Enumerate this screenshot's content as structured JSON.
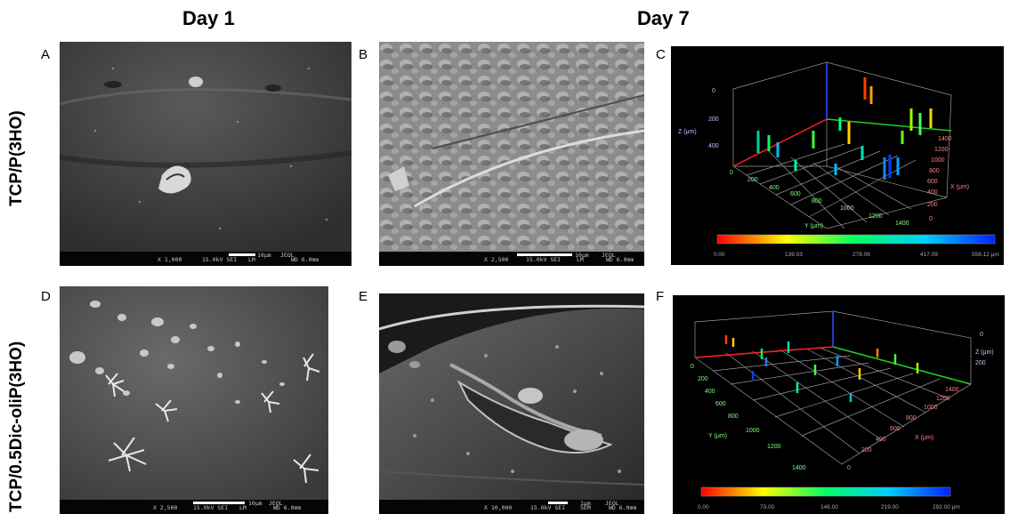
{
  "columns": {
    "day1": "Day 1",
    "day7": "Day 7"
  },
  "rows": {
    "top": "TCP/P(3HO)",
    "bottom": "TCP/0.5Dic-oliP(3HO)"
  },
  "panels": {
    "A": {
      "label": "A",
      "mag": "X 1,000",
      "kv": "15.0kV SEI",
      "scale": "10μm",
      "brand": "JEOL",
      "id": "LM",
      "wd": "WD 6.0mm"
    },
    "B": {
      "label": "B",
      "mag": "X 2,500",
      "kv": "15.0kV SEI",
      "scale": "10μm",
      "brand": "JEOL",
      "id": "LM",
      "wd": "WD 6.0mm"
    },
    "C": {
      "label": "C",
      "z_axis": "Z (μm)",
      "x_axis": "X (μm)",
      "y_axis": "Y (μm)",
      "z_ticks": [
        "0",
        "200",
        "400"
      ],
      "y_ticks": [
        "0",
        "200",
        "400",
        "600",
        "800",
        "1000",
        "1200",
        "1400"
      ],
      "x_ticks": [
        "1400",
        "1200",
        "1000",
        "800",
        "600",
        "400",
        "200",
        "0"
      ],
      "colorbar": [
        "0.00",
        "139.03",
        "278.06",
        "417.09",
        "556.12 μm"
      ]
    },
    "D": {
      "label": "D",
      "mag": "X 2,500",
      "kv": "15.0kV SEI",
      "scale": "10μm",
      "brand": "JEOL",
      "id": "LM",
      "wd": "WD 6.0mm"
    },
    "E": {
      "label": "E",
      "mag": "X 10,000",
      "kv": "15.0kV SEI",
      "scale": "1μm",
      "brand": "JEOL",
      "id": "SEM",
      "wd": "WD 6.0mm"
    },
    "F": {
      "label": "F",
      "z_axis": "Z (μm)",
      "x_axis": "X (μm)",
      "y_axis": "Y (μm)",
      "z_ticks": [
        "0",
        "200"
      ],
      "y_ticks": [
        "0",
        "200",
        "400",
        "600",
        "800",
        "1000",
        "1200",
        "1400"
      ],
      "x_ticks": [
        "1400",
        "1200",
        "1000",
        "800",
        "600",
        "400",
        "200",
        "0"
      ],
      "colorbar": [
        "0.00",
        "73.00",
        "146.00",
        "219.00",
        "292.00 μm"
      ]
    }
  },
  "colors": {
    "x_axis": "#ff2020",
    "y_axis": "#20d020",
    "z_axis": "#3050ff"
  }
}
